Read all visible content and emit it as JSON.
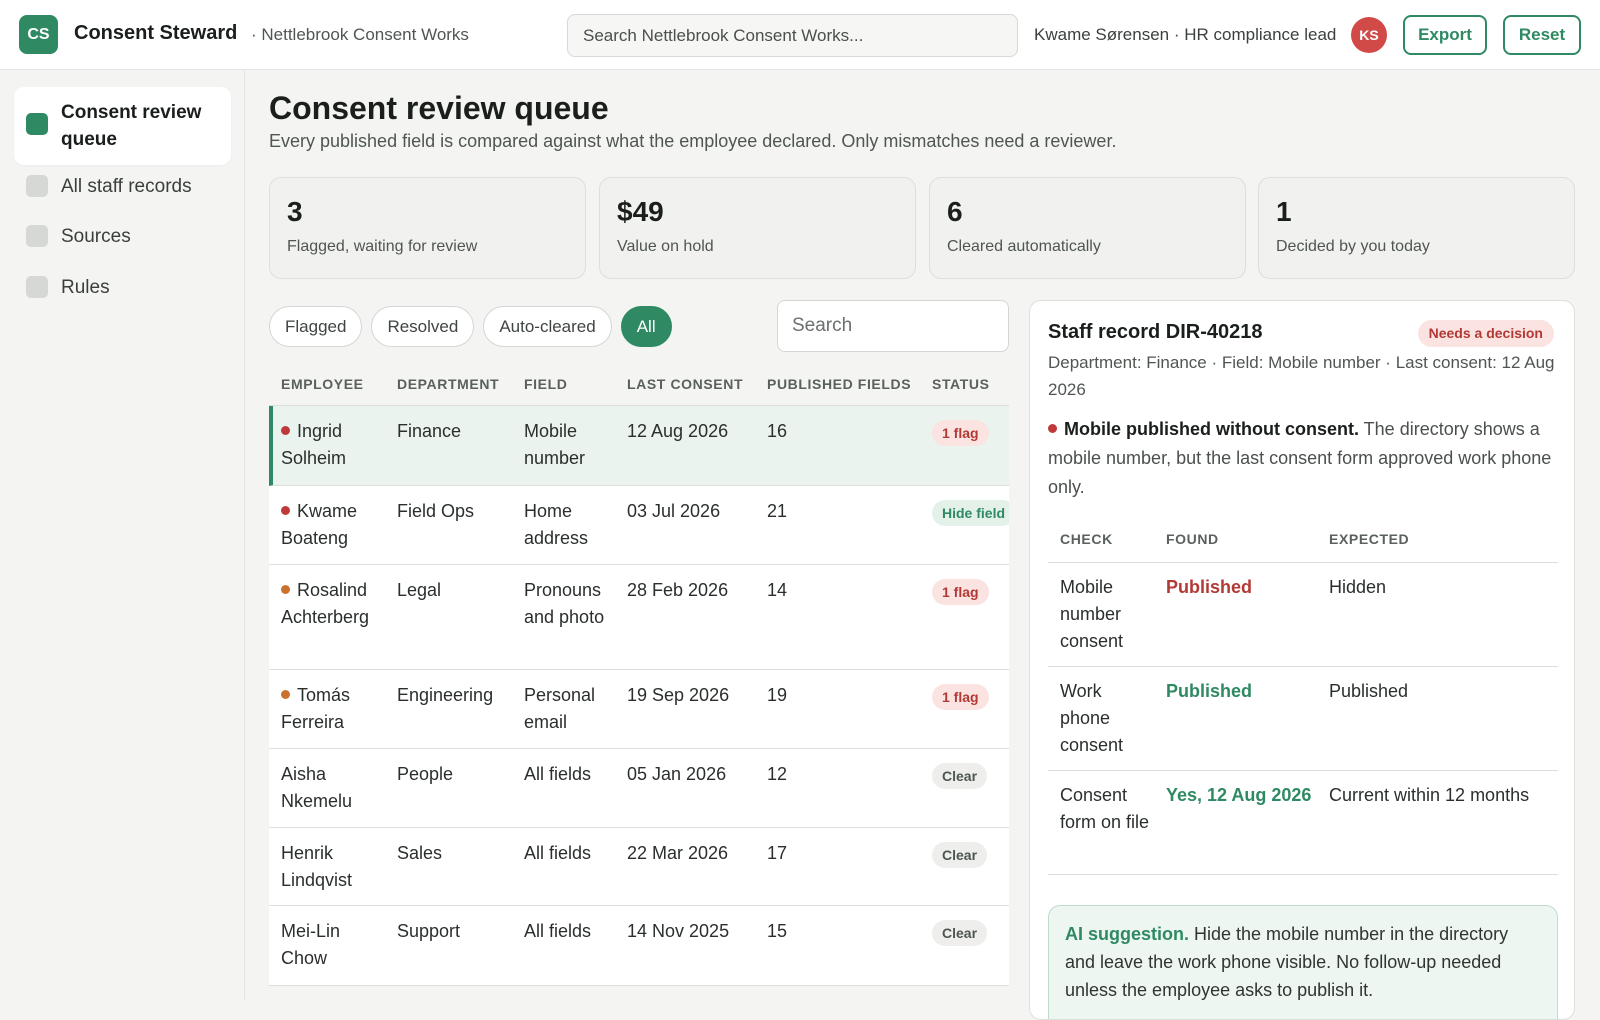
{
  "header": {
    "logo_text": "CS",
    "app_name": "Consent Steward",
    "org_name": "· Nettlebrook Consent Works",
    "search_placeholder": "Search Nettlebrook Consent Works...",
    "user_label": "Kwame Sørensen · HR compliance lead",
    "avatar_initials": "KS",
    "export_label": "Export",
    "reset_label": "Reset"
  },
  "sidebar": {
    "items": [
      {
        "label": "Consent review queue",
        "active": true
      },
      {
        "label": "All staff records",
        "active": false
      },
      {
        "label": "Sources",
        "active": false
      },
      {
        "label": "Rules",
        "active": false
      }
    ]
  },
  "page": {
    "title": "Consent review queue",
    "subtitle": "Every published field is compared against what the employee declared. Only mismatches need a reviewer."
  },
  "stats": [
    {
      "value": "3",
      "label": "Flagged, waiting for review"
    },
    {
      "value": "$49",
      "label": "Value on hold"
    },
    {
      "value": "6",
      "label": "Cleared automatically"
    },
    {
      "value": "1",
      "label": "Decided by you today"
    }
  ],
  "filters": {
    "chips": [
      "Flagged",
      "Resolved",
      "Auto-cleared",
      "All"
    ],
    "active": "All",
    "search_placeholder": "Search"
  },
  "table": {
    "headers": [
      "EMPLOYEE",
      "DEPARTMENT",
      "FIELD",
      "LAST CONSENT",
      "PUBLISHED FIELDS",
      "STATUS"
    ],
    "rows": [
      {
        "employee": "Ingrid Solheim",
        "department": "Finance",
        "field": "Mobile number",
        "last_consent": "12 Aug 2026",
        "published": "16",
        "status": "1 flag",
        "status_kind": "flag",
        "severity": "high",
        "selected": true
      },
      {
        "employee": "Kwame Boateng",
        "department": "Field Ops",
        "field": "Home address",
        "last_consent": "03 Jul 2026",
        "published": "21",
        "status": "Hide field",
        "status_kind": "resolved",
        "severity": "high",
        "selected": false
      },
      {
        "employee": "Rosalind Achterberg",
        "department": "Legal",
        "field": "Pronouns and photo",
        "last_consent": "28 Feb 2026",
        "published": "14",
        "status": "1 flag",
        "status_kind": "flag",
        "severity": "medium",
        "selected": false
      },
      {
        "employee": "Tomás Ferreira",
        "department": "Engineering",
        "field": "Personal email",
        "last_consent": "19 Sep 2026",
        "published": "19",
        "status": "1 flag",
        "status_kind": "flag",
        "severity": "medium",
        "selected": false
      },
      {
        "employee": "Aisha Nkemelu",
        "department": "People",
        "field": "All fields",
        "last_consent": "05 Jan 2026",
        "published": "12",
        "status": "Clear",
        "status_kind": "clear",
        "severity": "none",
        "selected": false
      },
      {
        "employee": "Henrik Lindqvist",
        "department": "Sales",
        "field": "All fields",
        "last_consent": "22 Mar 2026",
        "published": "17",
        "status": "Clear",
        "status_kind": "clear",
        "severity": "none",
        "selected": false
      },
      {
        "employee": "Mei-Lin Chow",
        "department": "Support",
        "field": "All fields",
        "last_consent": "14 Nov 2025",
        "published": "15",
        "status": "Clear",
        "status_kind": "clear",
        "severity": "none",
        "selected": false
      }
    ]
  },
  "detail": {
    "title": "Staff record DIR-40218",
    "badge": "Needs a decision",
    "meta": "Department: Finance · Field: Mobile number · Last consent: 12 Aug 2026",
    "message_lead": "Mobile published without consent.",
    "message_body": " The directory shows a mobile number, but the last consent form approved work phone only.",
    "check_headers": [
      "CHECK",
      "FOUND",
      "EXPECTED"
    ],
    "checks": [
      {
        "check": "Mobile number consent",
        "found": "Published",
        "found_kind": "bad",
        "expected": "Hidden"
      },
      {
        "check": "Work phone consent",
        "found": "Published",
        "found_kind": "good",
        "expected": "Published"
      },
      {
        "check": "Consent form on file",
        "found": "Yes, 12 Aug 2026",
        "found_kind": "good",
        "expected": "Current within 12 months"
      }
    ],
    "ai_lead": "AI suggestion.",
    "ai_body": " Hide the mobile number in the directory and leave the work phone visible. No follow-up needed unless the employee asks to publish it."
  },
  "colors": {
    "accent": "#2f8a63",
    "danger": "#b23a36",
    "warning": "#c0702a",
    "high_dot": "#c0393a",
    "medium_dot": "#c9712d"
  }
}
